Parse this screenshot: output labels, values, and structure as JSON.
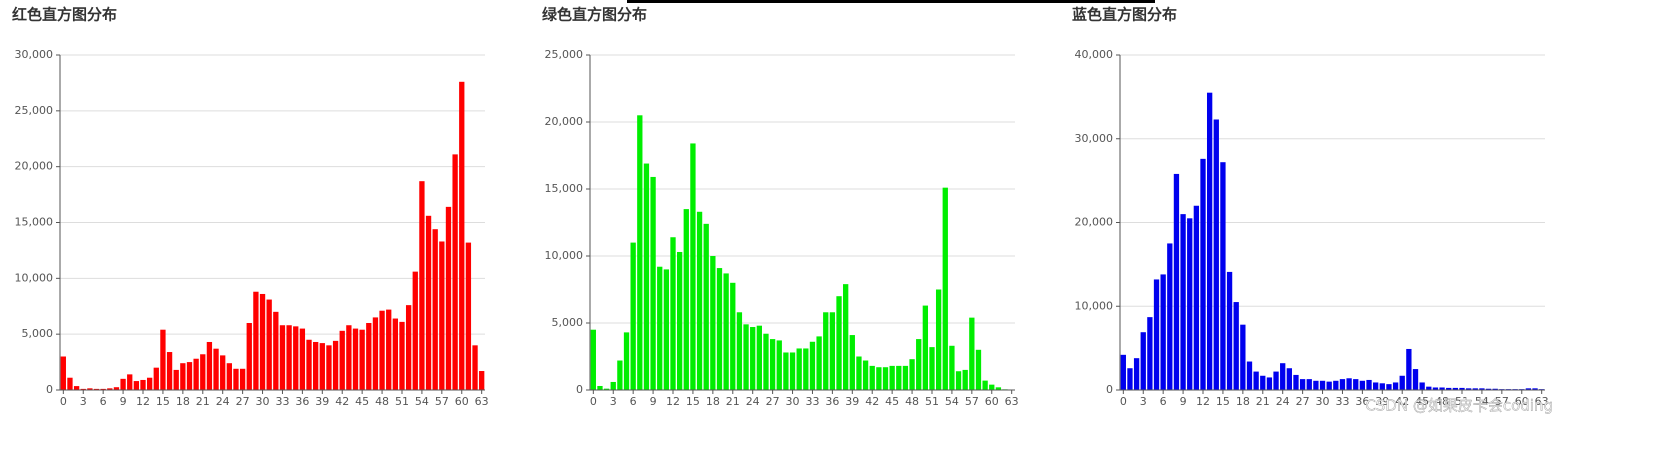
{
  "chart_data": [
    {
      "type": "bar",
      "title": "红色直方图分布",
      "color": "#ff0000",
      "categories": [
        "0",
        null,
        null,
        "3",
        null,
        null,
        "6",
        null,
        null,
        "9",
        null,
        null,
        "12",
        null,
        null,
        "15",
        null,
        null,
        "18",
        null,
        null,
        "21",
        null,
        null,
        "24",
        null,
        null,
        "27",
        null,
        null,
        "30",
        null,
        null,
        "33",
        null,
        null,
        "36",
        null,
        null,
        "39",
        null,
        null,
        "42",
        null,
        null,
        "45",
        null,
        null,
        "48",
        null,
        null,
        "51",
        null,
        null,
        "54",
        null,
        null,
        "57",
        null,
        null,
        "60",
        null,
        null,
        "63"
      ],
      "values": [
        3000,
        1100,
        350,
        100,
        150,
        100,
        100,
        150,
        250,
        1000,
        1400,
        800,
        900,
        1100,
        2000,
        5400,
        3400,
        1800,
        2400,
        2500,
        2800,
        3200,
        4300,
        3700,
        3100,
        2400,
        1900,
        1900,
        6000,
        8800,
        8600,
        8100,
        7000,
        5800,
        5800,
        5700,
        5500,
        4500,
        4300,
        4200,
        4000,
        4400,
        5300,
        5800,
        5500,
        5400,
        6000,
        6500,
        7100,
        7200,
        6400,
        6100,
        7600,
        10600,
        18700,
        15600,
        14400,
        13300,
        16400,
        21100,
        27600,
        13200,
        4000,
        1700
      ],
      "ylim": [
        0,
        30000
      ],
      "yticks": [
        0,
        {
          "value": 5000,
          "label": "5,000"
        },
        {
          "value": 10000,
          "label": "10,000"
        },
        {
          "value": 15000,
          "label": "15,000"
        },
        {
          "value": 20000,
          "label": "20,000"
        },
        {
          "value": 25000,
          "label": "25,000"
        },
        {
          "value": 30000,
          "label": "30,000"
        }
      ],
      "grid": true
    },
    {
      "type": "bar",
      "title": "绿色直方图分布",
      "color": "#00ee00",
      "categories": [
        "0",
        null,
        null,
        "3",
        null,
        null,
        "6",
        null,
        null,
        "9",
        null,
        null,
        "12",
        null,
        null,
        "15",
        null,
        null,
        "18",
        null,
        null,
        "21",
        null,
        null,
        "24",
        null,
        null,
        "27",
        null,
        null,
        "30",
        null,
        null,
        "33",
        null,
        null,
        "36",
        null,
        null,
        "39",
        null,
        null,
        "42",
        null,
        null,
        "45",
        null,
        null,
        "48",
        null,
        null,
        "51",
        null,
        null,
        "54",
        null,
        null,
        "57",
        null,
        null,
        "60",
        null,
        null,
        "63"
      ],
      "values": [
        4500,
        300,
        100,
        600,
        2200,
        4300,
        11000,
        20500,
        16900,
        15900,
        9200,
        9000,
        11400,
        10300,
        13500,
        18400,
        13300,
        12400,
        10000,
        9100,
        8700,
        8000,
        5800,
        4900,
        4700,
        4800,
        4200,
        3800,
        3700,
        2800,
        2800,
        3100,
        3100,
        3600,
        4000,
        5800,
        5800,
        7000,
        7900,
        4100,
        2500,
        2200,
        1800,
        1700,
        1700,
        1800,
        1800,
        1800,
        2300,
        3800,
        6300,
        3200,
        7500,
        15100,
        3300,
        1400,
        1500,
        5400,
        3000,
        700,
        400,
        200,
        50,
        0
      ],
      "ylim": [
        0,
        25000
      ],
      "yticks": [
        0,
        {
          "value": 5000,
          "label": "5,000"
        },
        {
          "value": 10000,
          "label": "10,000"
        },
        {
          "value": 15000,
          "label": "15,000"
        },
        {
          "value": 20000,
          "label": "20,000"
        },
        {
          "value": 25000,
          "label": "25,000"
        }
      ],
      "grid": true
    },
    {
      "type": "bar",
      "title": "蓝色直方图分布",
      "color": "#0000ee",
      "categories": [
        "0",
        null,
        null,
        "3",
        null,
        null,
        "6",
        null,
        null,
        "9",
        null,
        null,
        "12",
        null,
        null,
        "15",
        null,
        null,
        "18",
        null,
        null,
        "21",
        null,
        null,
        "24",
        null,
        null,
        "27",
        null,
        null,
        "30",
        null,
        null,
        "33",
        null,
        null,
        "36",
        null,
        null,
        "39",
        null,
        null,
        "42",
        null,
        null,
        "45",
        null,
        null,
        "48",
        null,
        null,
        "51",
        null,
        null,
        "54",
        null,
        null,
        "57",
        null,
        null,
        "60",
        null,
        null,
        "63"
      ],
      "values": [
        4200,
        2600,
        3800,
        6900,
        8700,
        13200,
        13800,
        17500,
        25800,
        21000,
        20500,
        22000,
        27600,
        35500,
        32300,
        27200,
        14100,
        10500,
        7800,
        3400,
        2200,
        1700,
        1500,
        2200,
        3200,
        2600,
        1800,
        1300,
        1300,
        1100,
        1100,
        1000,
        1100,
        1300,
        1400,
        1300,
        1100,
        1200,
        900,
        800,
        700,
        900,
        1700,
        4900,
        2500,
        900,
        400,
        300,
        300,
        250,
        250,
        250,
        200,
        200,
        200,
        150,
        150,
        100,
        100,
        100,
        100,
        200,
        200,
        100
      ],
      "ylim": [
        0,
        40000
      ],
      "yticks": [
        0,
        {
          "value": 10000,
          "label": "10,000"
        },
        {
          "value": 20000,
          "label": "20,000"
        },
        {
          "value": 30000,
          "label": "30,000"
        },
        {
          "value": 40000,
          "label": "40,000"
        }
      ],
      "grid": true
    }
  ],
  "watermark": "CSDN @如果皮卡会coding"
}
